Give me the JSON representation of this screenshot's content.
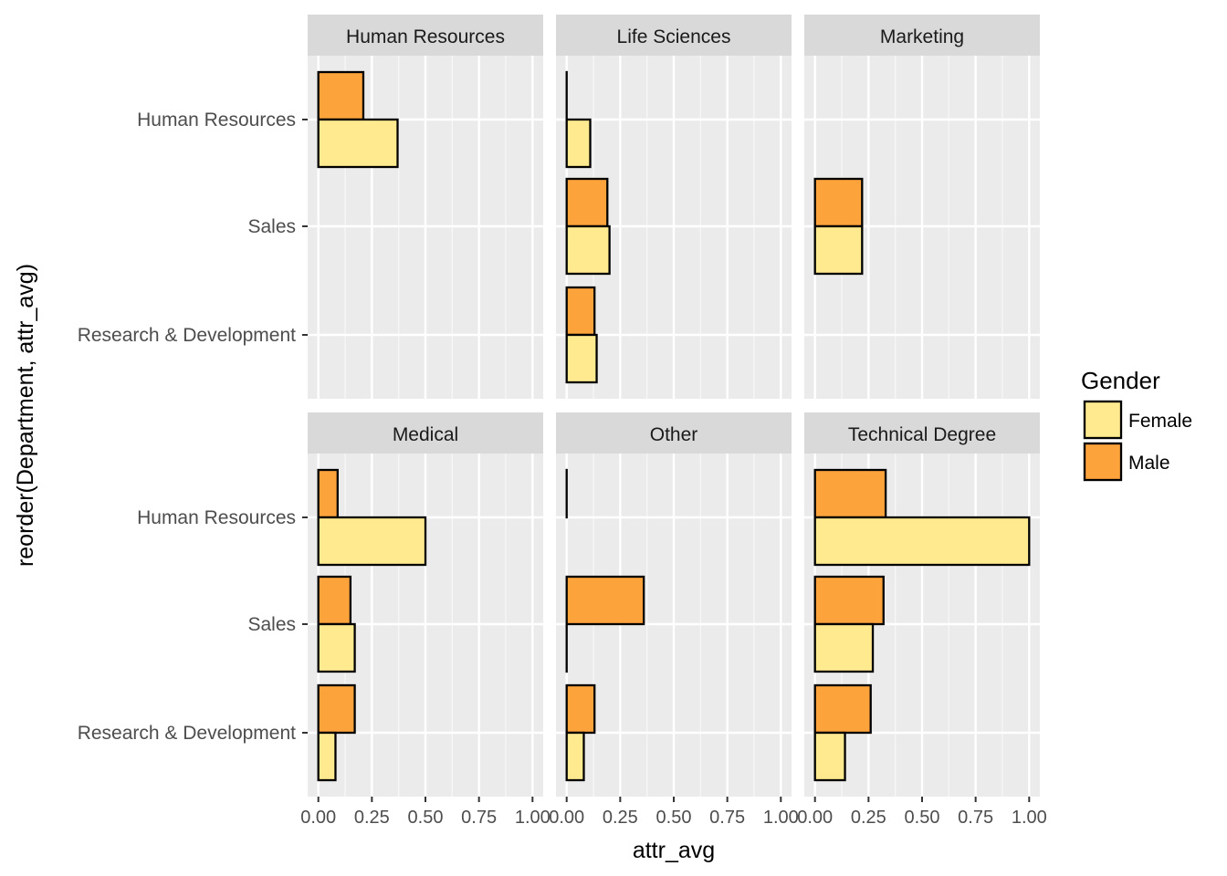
{
  "chart_data": {
    "type": "bar",
    "orientation": "horizontal",
    "xlabel": "attr_avg",
    "ylabel": "reorder(Department, attr_avg)",
    "xlim": [
      0,
      1
    ],
    "x_ticks": [
      "0.00",
      "0.25",
      "0.50",
      "0.75",
      "1.00"
    ],
    "categories": [
      "Human Resources",
      "Sales",
      "Research & Development"
    ],
    "grid": true,
    "legend": {
      "title": "Gender",
      "position": "right",
      "entries": [
        {
          "name": "Female",
          "color": "#FFEA8F"
        },
        {
          "name": "Male",
          "color": "#FCA33C"
        }
      ]
    },
    "facets": [
      {
        "title": "Human Resources",
        "series": [
          {
            "name": "Male",
            "values": [
              0.21,
              null,
              null
            ]
          },
          {
            "name": "Female",
            "values": [
              0.37,
              null,
              null
            ]
          }
        ]
      },
      {
        "title": "Life Sciences",
        "series": [
          {
            "name": "Male",
            "values": [
              0.0,
              0.19,
              0.13
            ]
          },
          {
            "name": "Female",
            "values": [
              0.11,
              0.2,
              0.14
            ]
          }
        ]
      },
      {
        "title": "Marketing",
        "series": [
          {
            "name": "Male",
            "values": [
              null,
              0.22,
              null
            ]
          },
          {
            "name": "Female",
            "values": [
              null,
              0.22,
              null
            ]
          }
        ]
      },
      {
        "title": "Medical",
        "series": [
          {
            "name": "Male",
            "values": [
              0.09,
              0.15,
              0.17
            ]
          },
          {
            "name": "Female",
            "values": [
              0.5,
              0.17,
              0.08
            ]
          }
        ]
      },
      {
        "title": "Other",
        "series": [
          {
            "name": "Male",
            "values": [
              0.0,
              0.36,
              0.13
            ]
          },
          {
            "name": "Female",
            "values": [
              null,
              0.0,
              0.08
            ]
          }
        ]
      },
      {
        "title": "Technical Degree",
        "series": [
          {
            "name": "Male",
            "values": [
              0.33,
              0.32,
              0.26
            ]
          },
          {
            "name": "Female",
            "values": [
              1.0,
              0.27,
              0.14
            ]
          }
        ]
      }
    ]
  }
}
